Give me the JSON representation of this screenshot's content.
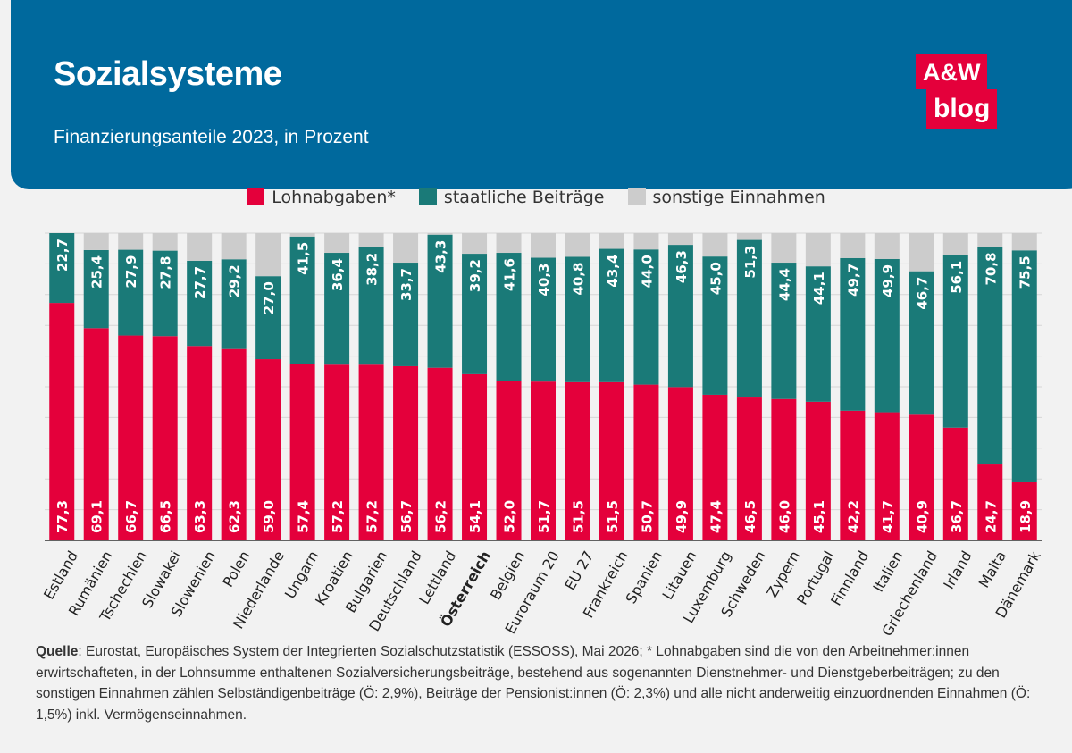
{
  "header": {
    "title": "Sozialsysteme",
    "subtitle": "Finanzierungsanteile 2023, in Prozent",
    "logo_top": "A&W",
    "logo_bottom": "blog"
  },
  "legend": [
    {
      "label": "Lohnabgaben*",
      "color": "#e4003b"
    },
    {
      "label": "staatliche Beiträge",
      "color": "#1a7a78"
    },
    {
      "label": "sonstige Einnahmen",
      "color": "#cccccc"
    }
  ],
  "colors": {
    "lohn": "#e4003b",
    "staat": "#1a7a78",
    "sonst": "#cccccc",
    "header": "#00699d"
  },
  "chart_data": {
    "type": "bar",
    "stacked": true,
    "ylim": [
      0,
      100
    ],
    "grid": true,
    "highlight": "Österreich",
    "categories": [
      "Estland",
      "Rumänien",
      "Tschechien",
      "Slowakei",
      "Slowenien",
      "Polen",
      "Niederlande",
      "Ungarn",
      "Kroatien",
      "Bulgarien",
      "Deutschland",
      "Lettland",
      "Österreich",
      "Belgien",
      "Euroraum 20",
      "EU 27",
      "Frankreich",
      "Spanien",
      "Litauen",
      "Luxemburg",
      "Schweden",
      "Zypern",
      "Portugal",
      "Finnland",
      "Italien",
      "Griechenland",
      "Irland",
      "Malta",
      "Dänemark"
    ],
    "series": [
      {
        "name": "Lohnabgaben*",
        "values": [
          77.3,
          69.1,
          66.7,
          66.5,
          63.3,
          62.3,
          59.0,
          57.4,
          57.2,
          57.2,
          56.7,
          56.2,
          54.1,
          52.0,
          51.7,
          51.5,
          51.5,
          50.7,
          49.9,
          47.4,
          46.5,
          46.0,
          45.1,
          42.2,
          41.7,
          40.9,
          36.7,
          24.7,
          18.9
        ]
      },
      {
        "name": "staatliche Beiträge",
        "values": [
          22.7,
          25.4,
          27.9,
          27.8,
          27.7,
          29.2,
          27.0,
          41.5,
          36.4,
          38.2,
          33.7,
          43.3,
          39.2,
          41.6,
          40.3,
          40.8,
          43.4,
          44.0,
          46.3,
          45.0,
          51.3,
          44.4,
          44.1,
          49.7,
          49.9,
          46.7,
          56.1,
          70.8,
          75.5
        ]
      },
      {
        "name": "sonstige Einnahmen",
        "values": [
          0.0,
          5.5,
          5.4,
          5.7,
          9.0,
          8.5,
          14.0,
          1.1,
          6.4,
          4.6,
          9.6,
          0.5,
          6.7,
          6.4,
          8.0,
          7.7,
          5.1,
          5.3,
          3.8,
          7.6,
          2.2,
          9.6,
          10.8,
          8.1,
          8.4,
          12.4,
          7.2,
          4.5,
          5.6
        ]
      }
    ],
    "label_format": "comma-decimal"
  },
  "source": {
    "label": "Quelle",
    "text": ": Eurostat, Europäisches System der Integrierten Sozialschutzstatistik (ESSOSS), Mai 2026; * Lohnabgaben sind die von den Arbeitnehmer:innen erwirtschafteten, in der Lohnsumme enthaltenen Sozialversicherungsbeiträge, bestehend aus sogenannten Dienstnehmer- und Dienstgeberbeiträgen; zu den sonstigen Einnahmen zählen Selbständigenbeiträge (Ö: 2,9%), Beiträge der Pensionist:innen (Ö: 2,3%) und alle nicht anderweitig einzuordnenden Einnahmen (Ö: 1,5%) inkl. Vermögenseinnahmen."
  }
}
